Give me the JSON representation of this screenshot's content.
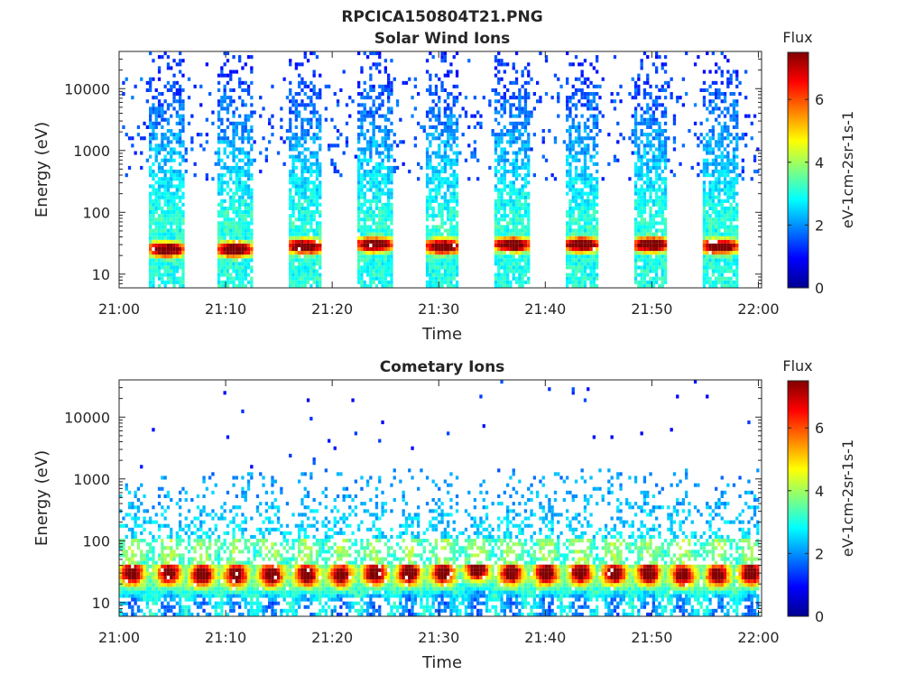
{
  "figure_title": "RPCICA150804T21.PNG",
  "chart_data": [
    {
      "type": "heatmap",
      "title": "Solar Wind Ions",
      "xlabel": "Time",
      "ylabel": "Energy (eV)",
      "x_ticks": [
        "21:00",
        "21:10",
        "21:20",
        "21:30",
        "21:40",
        "21:50",
        "22:00"
      ],
      "xlim_minutes": [
        0,
        60.3
      ],
      "y_scale": "log",
      "y_ticks": [
        10,
        100,
        1000,
        10000
      ],
      "y_tick_labels": [
        "10",
        "100",
        "1000",
        "10000"
      ],
      "ylim": [
        6,
        40000
      ],
      "colorbar": {
        "title": "Flux",
        "label": "eV-1cm-2sr-1s-1",
        "ticks": [
          0,
          2,
          4,
          6
        ],
        "range": [
          0,
          7.5
        ],
        "colormap": "jet"
      },
      "bursts": [
        {
          "start_min": 2.8,
          "end_min": 6.1,
          "peak_energy_ev": 25,
          "peak_flux": 6.0
        },
        {
          "start_min": 9.3,
          "end_min": 12.5,
          "peak_energy_ev": 25,
          "peak_flux": 6.0
        },
        {
          "start_min": 15.8,
          "end_min": 19.1,
          "peak_energy_ev": 28,
          "peak_flux": 6.0
        },
        {
          "start_min": 22.3,
          "end_min": 25.6,
          "peak_energy_ev": 30,
          "peak_flux": 6.0
        },
        {
          "start_min": 28.8,
          "end_min": 32.0,
          "peak_energy_ev": 28,
          "peak_flux": 6.0
        },
        {
          "start_min": 35.3,
          "end_min": 38.5,
          "peak_energy_ev": 30,
          "peak_flux": 6.0
        },
        {
          "start_min": 41.8,
          "end_min": 45.0,
          "peak_energy_ev": 30,
          "peak_flux": 6.0
        },
        {
          "start_min": 48.3,
          "end_min": 51.5,
          "peak_energy_ev": 30,
          "peak_flux": 6.0
        },
        {
          "start_min": 54.7,
          "end_min": 58.0,
          "peak_energy_ev": 28,
          "peak_flux": 6.0
        }
      ]
    },
    {
      "type": "heatmap",
      "title": "Cometary Ions",
      "xlabel": "Time",
      "ylabel": "Energy (eV)",
      "x_ticks": [
        "21:00",
        "21:10",
        "21:20",
        "21:30",
        "21:40",
        "21:50",
        "22:00"
      ],
      "xlim_minutes": [
        0,
        60.3
      ],
      "y_scale": "log",
      "y_ticks": [
        10,
        100,
        1000,
        10000
      ],
      "y_tick_labels": [
        "10",
        "100",
        "1000",
        "10000"
      ],
      "ylim": [
        6,
        40000
      ],
      "colorbar": {
        "title": "Flux",
        "label": "eV-1cm-2sr-1s-1",
        "ticks": [
          0,
          2,
          4,
          6
        ],
        "range": [
          0,
          7.5
        ],
        "colormap": "jet"
      },
      "bursts": [
        {
          "center_min": 1.2,
          "peak_energy_ev": 30,
          "peak_flux": 7.3
        },
        {
          "center_min": 4.7,
          "peak_energy_ev": 30,
          "peak_flux": 7.0
        },
        {
          "center_min": 7.8,
          "peak_energy_ev": 28,
          "peak_flux": 7.3
        },
        {
          "center_min": 11.0,
          "peak_energy_ev": 28,
          "peak_flux": 7.0
        },
        {
          "center_min": 14.3,
          "peak_energy_ev": 28,
          "peak_flux": 7.3
        },
        {
          "center_min": 17.6,
          "peak_energy_ev": 28,
          "peak_flux": 7.0
        },
        {
          "center_min": 20.8,
          "peak_energy_ev": 28,
          "peak_flux": 7.0
        },
        {
          "center_min": 24.0,
          "peak_energy_ev": 30,
          "peak_flux": 7.3
        },
        {
          "center_min": 27.2,
          "peak_energy_ev": 30,
          "peak_flux": 7.3
        },
        {
          "center_min": 30.4,
          "peak_energy_ev": 30,
          "peak_flux": 7.0
        },
        {
          "center_min": 33.6,
          "peak_energy_ev": 35,
          "peak_flux": 7.3
        },
        {
          "center_min": 36.8,
          "peak_energy_ev": 30,
          "peak_flux": 7.0
        },
        {
          "center_min": 40.1,
          "peak_energy_ev": 30,
          "peak_flux": 7.3
        },
        {
          "center_min": 43.3,
          "peak_energy_ev": 30,
          "peak_flux": 7.0
        },
        {
          "center_min": 46.5,
          "peak_energy_ev": 30,
          "peak_flux": 7.0
        },
        {
          "center_min": 49.7,
          "peak_energy_ev": 30,
          "peak_flux": 7.3
        },
        {
          "center_min": 52.9,
          "peak_energy_ev": 28,
          "peak_flux": 7.0
        },
        {
          "center_min": 56.2,
          "peak_energy_ev": 28,
          "peak_flux": 7.0
        },
        {
          "center_min": 59.3,
          "peak_energy_ev": 30,
          "peak_flux": 7.3
        }
      ]
    }
  ]
}
